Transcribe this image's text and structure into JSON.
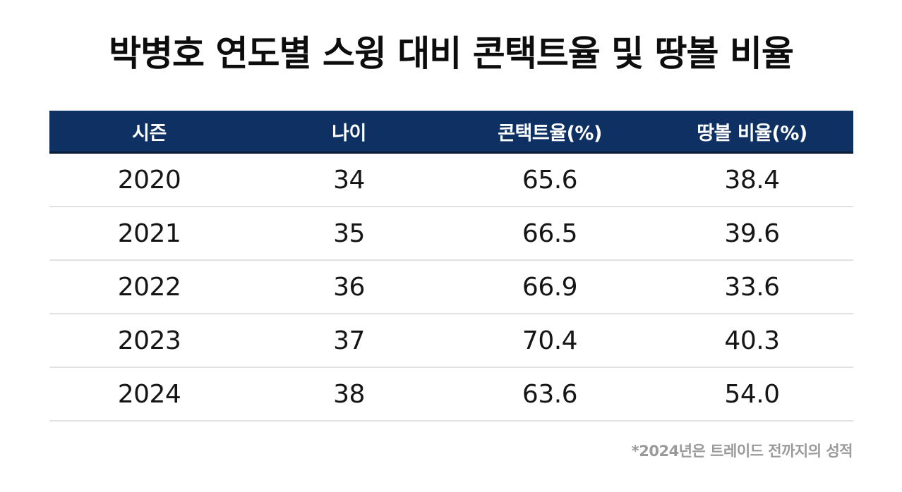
{
  "chart_data": {
    "type": "table",
    "title": "박병호 연도별 스윙 대비 콘택트율 및 땅볼 비율",
    "columns": [
      "시즌",
      "나이",
      "콘택트율(%)",
      "땅볼 비율(%)"
    ],
    "rows": [
      [
        "2020",
        "34",
        "65.6",
        "38.4"
      ],
      [
        "2021",
        "35",
        "66.5",
        "39.6"
      ],
      [
        "2022",
        "36",
        "66.9",
        "33.6"
      ],
      [
        "2023",
        "37",
        "70.4",
        "40.3"
      ],
      [
        "2024",
        "38",
        "63.6",
        "54.0"
      ]
    ],
    "footnote": "*2024년은 트레이드 전까지의 성적",
    "header_color": "#0e3062"
  }
}
